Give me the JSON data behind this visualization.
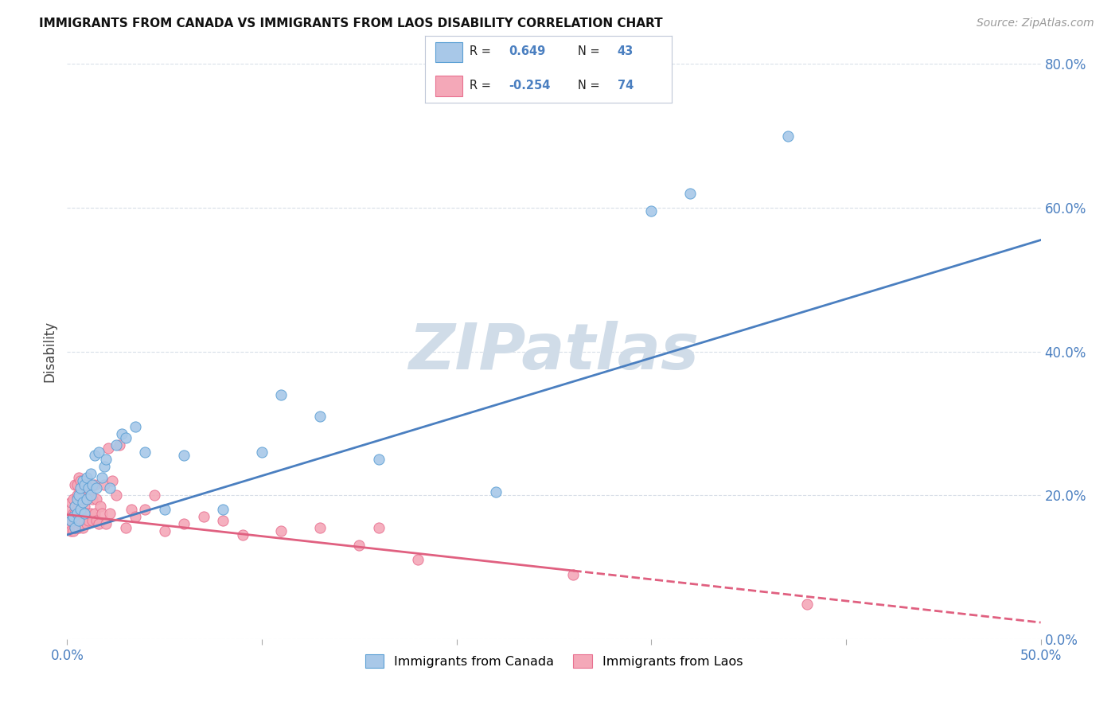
{
  "title": "IMMIGRANTS FROM CANADA VS IMMIGRANTS FROM LAOS DISABILITY CORRELATION CHART",
  "source": "Source: ZipAtlas.com",
  "ylabel": "Disability",
  "xlim": [
    0.0,
    0.5
  ],
  "ylim": [
    0.0,
    0.8
  ],
  "ytick_vals": [
    0.0,
    0.2,
    0.4,
    0.6,
    0.8
  ],
  "canada_R": 0.649,
  "canada_N": 43,
  "laos_R": -0.254,
  "laos_N": 74,
  "canada_color": "#a8c8e8",
  "laos_color": "#f4a8b8",
  "canada_edge_color": "#5a9fd4",
  "laos_edge_color": "#e87090",
  "canada_line_color": "#4a7fc0",
  "laos_line_color": "#e06080",
  "blue_text_color": "#4a7fc0",
  "background_color": "#ffffff",
  "grid_color": "#d8dfe8",
  "watermark_color": "#d0dce8",
  "canada_line_intercept": 0.145,
  "canada_line_slope": 0.82,
  "laos_line_intercept": 0.173,
  "laos_line_slope": -0.3,
  "canada_x": [
    0.002,
    0.003,
    0.004,
    0.004,
    0.005,
    0.005,
    0.006,
    0.006,
    0.007,
    0.007,
    0.008,
    0.008,
    0.009,
    0.009,
    0.01,
    0.01,
    0.011,
    0.012,
    0.012,
    0.013,
    0.014,
    0.015,
    0.016,
    0.018,
    0.019,
    0.02,
    0.022,
    0.025,
    0.028,
    0.03,
    0.035,
    0.04,
    0.05,
    0.06,
    0.08,
    0.1,
    0.11,
    0.13,
    0.16,
    0.22,
    0.3,
    0.32,
    0.37
  ],
  "canada_y": [
    0.165,
    0.17,
    0.155,
    0.185,
    0.175,
    0.195,
    0.165,
    0.2,
    0.18,
    0.21,
    0.19,
    0.22,
    0.175,
    0.215,
    0.195,
    0.225,
    0.21,
    0.2,
    0.23,
    0.215,
    0.255,
    0.21,
    0.26,
    0.225,
    0.24,
    0.25,
    0.21,
    0.27,
    0.285,
    0.28,
    0.295,
    0.26,
    0.18,
    0.255,
    0.18,
    0.26,
    0.34,
    0.31,
    0.25,
    0.205,
    0.595,
    0.62,
    0.7
  ],
  "laos_x": [
    0.001,
    0.001,
    0.001,
    0.002,
    0.002,
    0.002,
    0.003,
    0.003,
    0.003,
    0.003,
    0.004,
    0.004,
    0.004,
    0.004,
    0.005,
    0.005,
    0.005,
    0.005,
    0.005,
    0.006,
    0.006,
    0.006,
    0.006,
    0.007,
    0.007,
    0.007,
    0.007,
    0.008,
    0.008,
    0.008,
    0.009,
    0.009,
    0.009,
    0.01,
    0.01,
    0.01,
    0.01,
    0.011,
    0.011,
    0.012,
    0.012,
    0.013,
    0.013,
    0.014,
    0.014,
    0.015,
    0.015,
    0.016,
    0.017,
    0.018,
    0.019,
    0.02,
    0.021,
    0.022,
    0.023,
    0.025,
    0.027,
    0.03,
    0.033,
    0.035,
    0.04,
    0.045,
    0.05,
    0.06,
    0.07,
    0.08,
    0.09,
    0.11,
    0.13,
    0.15,
    0.16,
    0.18,
    0.26,
    0.38
  ],
  "laos_y": [
    0.155,
    0.17,
    0.18,
    0.15,
    0.165,
    0.19,
    0.15,
    0.165,
    0.175,
    0.195,
    0.155,
    0.165,
    0.175,
    0.215,
    0.155,
    0.17,
    0.18,
    0.2,
    0.215,
    0.155,
    0.17,
    0.185,
    0.225,
    0.16,
    0.175,
    0.19,
    0.22,
    0.155,
    0.175,
    0.2,
    0.165,
    0.185,
    0.21,
    0.16,
    0.175,
    0.195,
    0.22,
    0.165,
    0.2,
    0.175,
    0.2,
    0.165,
    0.195,
    0.175,
    0.215,
    0.165,
    0.195,
    0.16,
    0.185,
    0.175,
    0.215,
    0.16,
    0.265,
    0.175,
    0.22,
    0.2,
    0.27,
    0.155,
    0.18,
    0.17,
    0.18,
    0.2,
    0.15,
    0.16,
    0.17,
    0.165,
    0.145,
    0.15,
    0.155,
    0.13,
    0.155,
    0.11,
    0.09,
    0.048
  ]
}
